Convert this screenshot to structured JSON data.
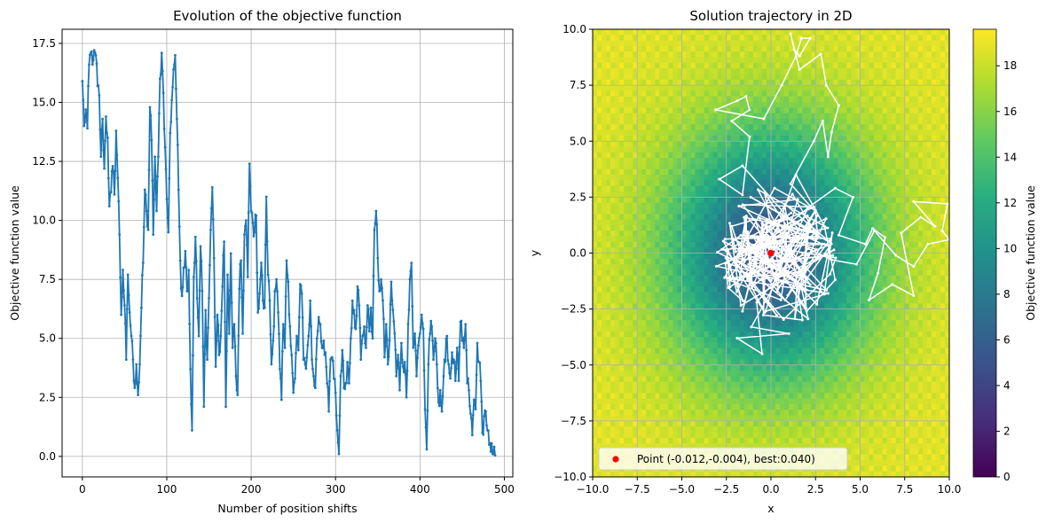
{
  "colors": {
    "line": "#1f77b4",
    "trajectory": "#ffffff",
    "best_point": "#ff0000",
    "grid": "#b0b0b0"
  },
  "chart_data": [
    {
      "type": "line",
      "title": "Evolution of the objective function",
      "xlabel": "Number of position shifts",
      "ylabel": "Objective function value",
      "xlim": [
        -24,
        510
      ],
      "ylim": [
        -0.87,
        18.1
      ],
      "xticks": [
        0,
        100,
        200,
        300,
        400,
        500
      ],
      "xtick_labels": [
        "0",
        "100",
        "200",
        "300",
        "400",
        "500"
      ],
      "yticks": [
        0,
        2.5,
        5,
        7.5,
        10,
        12.5,
        15,
        17.5
      ],
      "ytick_labels": [
        "0.0",
        "2.5",
        "5.0",
        "7.5",
        "10.0",
        "12.5",
        "15.0",
        "17.5"
      ],
      "grid": true,
      "marker": "dot",
      "keypoints": [
        [
          0,
          15.9
        ],
        [
          2,
          14.0
        ],
        [
          4,
          14.7
        ],
        [
          6,
          13.9
        ],
        [
          8,
          16.6
        ],
        [
          10,
          17.1
        ],
        [
          13,
          16.8
        ],
        [
          16,
          17.0
        ],
        [
          18,
          15.7
        ],
        [
          20,
          15.3
        ],
        [
          22,
          12.7
        ],
        [
          24,
          14.3
        ],
        [
          26,
          12.2
        ],
        [
          28,
          14.4
        ],
        [
          30,
          13.5
        ],
        [
          32,
          10.6
        ],
        [
          34,
          11.2
        ],
        [
          36,
          12.3
        ],
        [
          38,
          11.1
        ],
        [
          40,
          13.8
        ],
        [
          42,
          11.8
        ],
        [
          44,
          9.4
        ],
        [
          46,
          6.0
        ],
        [
          48,
          7.9
        ],
        [
          50,
          6.4
        ],
        [
          52,
          4.1
        ],
        [
          54,
          7.7
        ],
        [
          56,
          6.1
        ],
        [
          58,
          5.1
        ],
        [
          60,
          4.1
        ],
        [
          62,
          2.9
        ],
        [
          64,
          3.9
        ],
        [
          66,
          2.6
        ],
        [
          68,
          3.9
        ],
        [
          70,
          6.3
        ],
        [
          72,
          8.2
        ],
        [
          74,
          11.3
        ],
        [
          76,
          10.4
        ],
        [
          78,
          9.6
        ],
        [
          80,
          14.8
        ],
        [
          82,
          13.4
        ],
        [
          84,
          9.4
        ],
        [
          86,
          12.7
        ],
        [
          88,
          10.4
        ],
        [
          90,
          12.7
        ],
        [
          92,
          16.0
        ],
        [
          94,
          17.1
        ],
        [
          96,
          15.4
        ],
        [
          98,
          13.1
        ],
        [
          100,
          10.9
        ],
        [
          102,
          9.5
        ],
        [
          104,
          13.7
        ],
        [
          106,
          15.1
        ],
        [
          108,
          16.4
        ],
        [
          110,
          17.0
        ],
        [
          112,
          14.3
        ],
        [
          114,
          11.3
        ],
        [
          116,
          8.3
        ],
        [
          118,
          6.8
        ],
        [
          120,
          8.0
        ],
        [
          122,
          8.7
        ],
        [
          124,
          7.0
        ],
        [
          126,
          7.9
        ],
        [
          128,
          3.7
        ],
        [
          130,
          1.1
        ],
        [
          132,
          7.6
        ],
        [
          134,
          9.3
        ],
        [
          136,
          6.7
        ],
        [
          138,
          5.1
        ],
        [
          140,
          8.9
        ],
        [
          142,
          7.0
        ],
        [
          144,
          2.1
        ],
        [
          146,
          6.2
        ],
        [
          148,
          4.1
        ],
        [
          150,
          6.7
        ],
        [
          152,
          9.6
        ],
        [
          154,
          11.4
        ],
        [
          156,
          8.4
        ],
        [
          158,
          3.8
        ],
        [
          160,
          6.0
        ],
        [
          162,
          4.3
        ],
        [
          164,
          5.1
        ],
        [
          166,
          7.2
        ],
        [
          168,
          9.1
        ],
        [
          170,
          2.1
        ],
        [
          172,
          7.7
        ],
        [
          174,
          5.2
        ],
        [
          176,
          8.6
        ],
        [
          178,
          4.6
        ],
        [
          180,
          5.6
        ],
        [
          182,
          3.4
        ],
        [
          184,
          2.6
        ],
        [
          186,
          7.1
        ],
        [
          188,
          8.3
        ],
        [
          190,
          5.2
        ],
        [
          192,
          9.4
        ],
        [
          194,
          10.0
        ],
        [
          196,
          7.6
        ],
        [
          198,
          12.4
        ],
        [
          200,
          10.4
        ],
        [
          202,
          9.9
        ],
        [
          204,
          9.5
        ],
        [
          206,
          10.2
        ],
        [
          208,
          6.1
        ],
        [
          210,
          6.9
        ],
        [
          212,
          8.2
        ],
        [
          214,
          6.6
        ],
        [
          216,
          6.3
        ],
        [
          218,
          11.0
        ],
        [
          220,
          7.7
        ],
        [
          222,
          6.6
        ],
        [
          224,
          3.9
        ],
        [
          226,
          4.9
        ],
        [
          228,
          7.0
        ],
        [
          230,
          7.5
        ],
        [
          232,
          6.1
        ],
        [
          234,
          3.7
        ],
        [
          236,
          2.4
        ],
        [
          238,
          5.6
        ],
        [
          240,
          4.6
        ],
        [
          242,
          8.3
        ],
        [
          244,
          7.4
        ],
        [
          246,
          5.5
        ],
        [
          248,
          4.3
        ],
        [
          250,
          2.7
        ],
        [
          252,
          3.3
        ],
        [
          254,
          5.1
        ],
        [
          256,
          4.5
        ],
        [
          258,
          7.3
        ],
        [
          260,
          6.9
        ],
        [
          262,
          4.1
        ],
        [
          264,
          3.9
        ],
        [
          266,
          4.2
        ],
        [
          268,
          5.1
        ],
        [
          270,
          6.6
        ],
        [
          272,
          4.1
        ],
        [
          274,
          3.4
        ],
        [
          276,
          2.9
        ],
        [
          278,
          5.0
        ],
        [
          280,
          5.9
        ],
        [
          282,
          5.6
        ],
        [
          284,
          4.6
        ],
        [
          286,
          4.9
        ],
        [
          288,
          4.4
        ],
        [
          290,
          3.1
        ],
        [
          292,
          1.9
        ],
        [
          294,
          4.1
        ],
        [
          296,
          4.2
        ],
        [
          298,
          3.3
        ],
        [
          300,
          2.7
        ],
        [
          302,
          1.1
        ],
        [
          304,
          0.1
        ],
        [
          306,
          3.4
        ],
        [
          308,
          4.5
        ],
        [
          310,
          2.9
        ],
        [
          312,
          3.1
        ],
        [
          314,
          4.0
        ],
        [
          316,
          3.1
        ],
        [
          318,
          5.0
        ],
        [
          320,
          6.6
        ],
        [
          322,
          6.2
        ],
        [
          324,
          5.4
        ],
        [
          326,
          7.2
        ],
        [
          328,
          6.4
        ],
        [
          330,
          4.1
        ],
        [
          332,
          5.1
        ],
        [
          334,
          5.5
        ],
        [
          336,
          4.6
        ],
        [
          338,
          6.4
        ],
        [
          340,
          5.3
        ],
        [
          342,
          6.3
        ],
        [
          344,
          5.0
        ],
        [
          346,
          9.6
        ],
        [
          348,
          10.4
        ],
        [
          350,
          8.4
        ],
        [
          352,
          7.0
        ],
        [
          354,
          7.5
        ],
        [
          356,
          6.6
        ],
        [
          358,
          4.2
        ],
        [
          360,
          5.6
        ],
        [
          362,
          3.9
        ],
        [
          364,
          4.9
        ],
        [
          366,
          7.4
        ],
        [
          368,
          6.2
        ],
        [
          370,
          5.2
        ],
        [
          372,
          3.4
        ],
        [
          374,
          4.3
        ],
        [
          376,
          2.8
        ],
        [
          378,
          4.8
        ],
        [
          380,
          3.8
        ],
        [
          382,
          4.0
        ],
        [
          384,
          2.5
        ],
        [
          386,
          5.6
        ],
        [
          388,
          7.5
        ],
        [
          390,
          8.2
        ],
        [
          392,
          4.6
        ],
        [
          394,
          5.2
        ],
        [
          396,
          3.4
        ],
        [
          398,
          4.7
        ],
        [
          400,
          5.2
        ],
        [
          402,
          6.0
        ],
        [
          404,
          5.4
        ],
        [
          406,
          2.0
        ],
        [
          408,
          0.3
        ],
        [
          410,
          3.9
        ],
        [
          412,
          5.2
        ],
        [
          414,
          5.5
        ],
        [
          416,
          4.1
        ],
        [
          418,
          5.0
        ],
        [
          420,
          3.9
        ],
        [
          422,
          2.3
        ],
        [
          424,
          2.8
        ],
        [
          426,
          1.9
        ],
        [
          428,
          3.4
        ],
        [
          430,
          4.0
        ],
        [
          432,
          5.1
        ],
        [
          434,
          3.9
        ],
        [
          436,
          3.3
        ],
        [
          438,
          4.4
        ],
        [
          440,
          4.1
        ],
        [
          442,
          3.2
        ],
        [
          444,
          4.6
        ],
        [
          446,
          3.2
        ],
        [
          448,
          5.7
        ],
        [
          450,
          4.9
        ],
        [
          452,
          4.6
        ],
        [
          454,
          5.6
        ],
        [
          456,
          3.1
        ],
        [
          458,
          2.8
        ],
        [
          460,
          1.8
        ],
        [
          462,
          0.9
        ],
        [
          464,
          2.4
        ],
        [
          466,
          2.0
        ],
        [
          468,
          4.8
        ],
        [
          470,
          4.0
        ],
        [
          472,
          3.2
        ],
        [
          474,
          1.0
        ],
        [
          476,
          1.7
        ],
        [
          478,
          1.9
        ],
        [
          480,
          1.1
        ],
        [
          482,
          0.5
        ],
        [
          484,
          0.2
        ],
        [
          486,
          0.1
        ],
        [
          489,
          0.04
        ]
      ]
    },
    {
      "type": "heatmap",
      "title": "Solution trajectory in 2D",
      "xlabel": "x",
      "ylabel": "y",
      "xlim": [
        -10,
        10
      ],
      "ylim": [
        -10,
        10
      ],
      "xticks": [
        -10,
        -7.5,
        -5,
        -2.5,
        0,
        2.5,
        5,
        7.5,
        10
      ],
      "xtick_labels": [
        "−10.0",
        "−7.5",
        "−5.0",
        "−2.5",
        "0.0",
        "2.5",
        "5.0",
        "7.5",
        "10.0"
      ],
      "yticks": [
        -10,
        -7.5,
        -5,
        -2.5,
        0,
        2.5,
        5,
        7.5,
        10
      ],
      "ytick_labels": [
        "−10.0",
        "−7.5",
        "−5.0",
        "−2.5",
        "0.0",
        "2.5",
        "5.0",
        "7.5",
        "10.0"
      ],
      "grid": true,
      "colormap": "viridis",
      "colorbar": {
        "label": "Objective function value",
        "range": [
          0,
          19.6
        ],
        "ticks": [
          0,
          2,
          4,
          6,
          8,
          10,
          12,
          14,
          16,
          18
        ],
        "tick_labels": [
          "0",
          "2",
          "4",
          "6",
          "8",
          "10",
          "12",
          "14",
          "16",
          "18"
        ]
      },
      "trajectory_keypoints": [
        [
          0,
          0
        ],
        [
          -0.5,
          -0.4
        ],
        [
          0.3,
          0.5
        ],
        [
          -1.0,
          0.2
        ],
        [
          1.1,
          -0.3
        ],
        [
          0.4,
          1.2
        ],
        [
          -1.3,
          -1.0
        ],
        [
          1.8,
          0.8
        ],
        [
          -0.7,
          1.6
        ],
        [
          2.2,
          -1.4
        ],
        [
          -2.0,
          0.6
        ],
        [
          0.8,
          -2.1
        ],
        [
          2.9,
          0.4
        ],
        [
          -1.8,
          2.1
        ],
        [
          1.5,
          2.4
        ],
        [
          -0.3,
          -2.6
        ],
        [
          3.2,
          -1.8
        ],
        [
          -2.6,
          -1.1
        ],
        [
          0.2,
          2.9
        ],
        [
          2.5,
          1.9
        ],
        [
          -1.1,
          -3.3
        ],
        [
          1.0,
          -3.6
        ],
        [
          -1.9,
          -3.8
        ],
        [
          -0.5,
          -4.5
        ],
        [
          -0.8,
          -2.2
        ],
        [
          0.6,
          -0.9
        ],
        [
          2.0,
          -2.6
        ],
        [
          3.6,
          -1.2
        ],
        [
          3.0,
          1.2
        ],
        [
          1.4,
          3.5
        ],
        [
          -1.6,
          3.9
        ],
        [
          -2.9,
          3.3
        ],
        [
          -1.6,
          2.6
        ],
        [
          -1.2,
          5.2
        ],
        [
          -2.2,
          5.9
        ],
        [
          -1.2,
          6.4
        ],
        [
          -1.4,
          7.0
        ],
        [
          -1.9,
          6.8
        ],
        [
          -3.1,
          6.4
        ],
        [
          -0.4,
          6.0
        ],
        [
          0.6,
          7.5
        ],
        [
          1.4,
          8.8
        ],
        [
          1.7,
          9.6
        ],
        [
          2.2,
          9.6
        ],
        [
          1.6,
          8.8
        ],
        [
          1.3,
          9.1
        ],
        [
          1.1,
          9.8
        ],
        [
          1.6,
          8.2
        ],
        [
          2.8,
          8.9
        ],
        [
          3.1,
          7.5
        ],
        [
          3.8,
          6.6
        ],
        [
          3.4,
          5.4
        ],
        [
          3.2,
          4.3
        ],
        [
          2.9,
          5.9
        ],
        [
          2.4,
          5.0
        ],
        [
          1.1,
          3.1
        ],
        [
          2.2,
          2.1
        ],
        [
          3.6,
          2.9
        ],
        [
          4.6,
          2.5
        ],
        [
          3.8,
          0.8
        ],
        [
          5.3,
          0.4
        ],
        [
          5.7,
          1.1
        ],
        [
          6.4,
          0.7
        ],
        [
          6.0,
          -0.9
        ],
        [
          5.5,
          -2.1
        ],
        [
          6.8,
          -1.4
        ],
        [
          8.0,
          -1.9
        ],
        [
          7.3,
          0.9
        ],
        [
          8.4,
          1.6
        ],
        [
          9.2,
          1.2
        ],
        [
          8.0,
          2.3
        ],
        [
          9.9,
          2.2
        ],
        [
          9.6,
          1.0
        ],
        [
          10.0,
          0.6
        ],
        [
          8.8,
          0.4
        ],
        [
          8.0,
          -0.6
        ],
        [
          7.0,
          -0.1
        ],
        [
          5.8,
          1.0
        ],
        [
          4.8,
          -0.5
        ],
        [
          3.4,
          -0.3
        ],
        [
          2.1,
          0.2
        ],
        [
          1.0,
          -0.6
        ],
        [
          0.3,
          0.1
        ],
        [
          -0.4,
          0.6
        ],
        [
          -1.5,
          -0.4
        ],
        [
          -2.2,
          1.2
        ],
        [
          -0.9,
          1.5
        ],
        [
          0.4,
          -1.5
        ],
        [
          1.7,
          -0.8
        ],
        [
          -0.6,
          -1.2
        ],
        [
          0.9,
          0.9
        ],
        [
          -0.012,
          -0.004
        ]
      ],
      "best_point": {
        "x": -0.012,
        "y": -0.004
      },
      "legend": {
        "label": "Point (-0.012,-0.004), best:0.040)",
        "placement": "lower-left"
      }
    }
  ]
}
